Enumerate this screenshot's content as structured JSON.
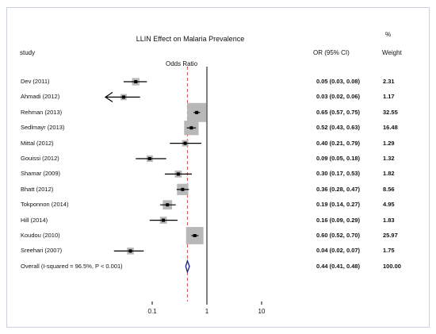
{
  "chart_data": {
    "type": "forest",
    "title": "LLIN Effect on Malaria Prevalence",
    "subtitle": "Odds Ratio",
    "columns": {
      "study": "study",
      "or": "OR (95% CI)",
      "weight_top": "%",
      "weight": "Weight"
    },
    "x_scale": "log",
    "x_ticks": [
      0.1,
      1,
      10
    ],
    "x_tick_labels": [
      "0.1",
      "1",
      "10"
    ],
    "null_line": 1,
    "overall_reference_line": 0.44,
    "studies": [
      {
        "label": "Dev (2011)",
        "or": 0.05,
        "lo": 0.03,
        "hi": 0.08,
        "or_text": "0.05 (0.03, 0.08)",
        "weight": 2.31,
        "weight_text": "2.31"
      },
      {
        "label": "Ahmadi (2012)",
        "or": 0.03,
        "lo": 0.02,
        "hi": 0.06,
        "or_text": "0.03 (0.02, 0.06)",
        "weight": 1.17,
        "weight_text": "1.17",
        "lower_clipped": true
      },
      {
        "label": "Rehman (2013)",
        "or": 0.65,
        "lo": 0.57,
        "hi": 0.75,
        "or_text": "0.65 (0.57, 0.75)",
        "weight": 32.55,
        "weight_text": "32.55"
      },
      {
        "label": "Sedlmayr (2013)",
        "or": 0.52,
        "lo": 0.43,
        "hi": 0.63,
        "or_text": "0.52 (0.43, 0.63)",
        "weight": 16.48,
        "weight_text": "16.48"
      },
      {
        "label": "Mittal (2012)",
        "or": 0.4,
        "lo": 0.21,
        "hi": 0.79,
        "or_text": "0.40 (0.21, 0.79)",
        "weight": 1.29,
        "weight_text": "1.29"
      },
      {
        "label": "Gouissi (2012)",
        "or": 0.09,
        "lo": 0.05,
        "hi": 0.18,
        "or_text": "0.09 (0.05, 0.18)",
        "weight": 1.32,
        "weight_text": "1.32"
      },
      {
        "label": "Shamar (2009)",
        "or": 0.3,
        "lo": 0.17,
        "hi": 0.53,
        "or_text": "0.30 (0.17, 0.53)",
        "weight": 1.82,
        "weight_text": "1.82"
      },
      {
        "label": "Bhatt (2012)",
        "or": 0.36,
        "lo": 0.28,
        "hi": 0.47,
        "or_text": "0.36 (0.28, 0.47)",
        "weight": 8.56,
        "weight_text": "8.56"
      },
      {
        "label": "Tokponnon (2014)",
        "or": 0.19,
        "lo": 0.14,
        "hi": 0.27,
        "or_text": "0.19 (0.14, 0.27)",
        "weight": 4.95,
        "weight_text": "4.95"
      },
      {
        "label": "Hill (2014)",
        "or": 0.16,
        "lo": 0.09,
        "hi": 0.29,
        "or_text": "0.16 (0.09, 0.29)",
        "weight": 1.83,
        "weight_text": "1.83"
      },
      {
        "label": "Koudou (2010)",
        "or": 0.6,
        "lo": 0.52,
        "hi": 0.7,
        "or_text": "0.60 (0.52, 0.70)",
        "weight": 25.97,
        "weight_text": "25.97"
      },
      {
        "label": "Sreehari (2007)",
        "or": 0.04,
        "lo": 0.02,
        "hi": 0.07,
        "or_text": "0.04 (0.02, 0.07)",
        "weight": 1.75,
        "weight_text": "1.75"
      }
    ],
    "overall": {
      "label": "Overall  (I-squared = 96.5%, P < 0.001)",
      "or": 0.44,
      "lo": 0.41,
      "hi": 0.48,
      "or_text": "0.44 (0.41, 0.48)",
      "weight_text": "100.00"
    },
    "colors": {
      "box": "#b8b8b8",
      "ci_line": "#000000",
      "diamond": "#1f2a8a",
      "overall_line": "#d04a4a",
      "frame": "#c9d2dc"
    }
  }
}
